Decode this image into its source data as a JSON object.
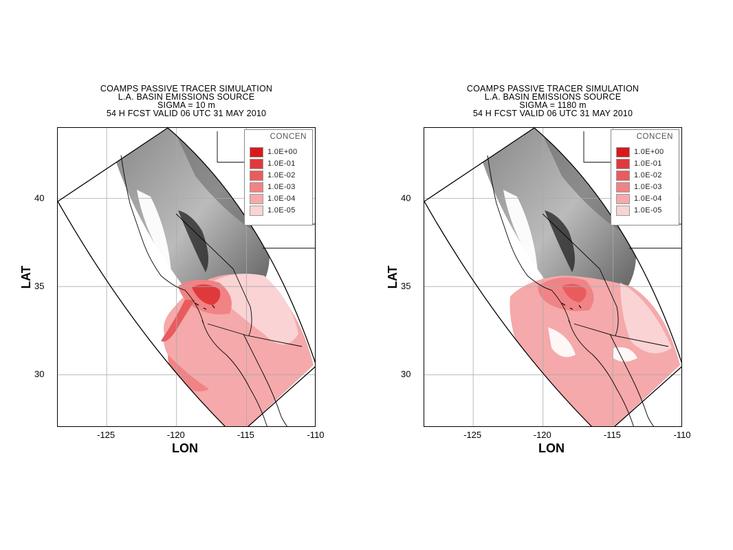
{
  "panels": [
    {
      "id": "left",
      "title_lines": [
        "COAMPS PASSIVE TRACER SIMULATION",
        "L.A. BASIN EMISSIONS SOURCE",
        "SIGMA = 10 m",
        "54 H FCST VALID 06 UTC 31 MAY 2010"
      ],
      "plume_extent": "surface"
    },
    {
      "id": "right",
      "title_lines": [
        "COAMPS PASSIVE TRACER SIMULATION",
        "L.A. BASIN EMISSIONS SOURCE",
        "SIGMA = 1180 m",
        "54 H FCST VALID 06 UTC 31 MAY 2010"
      ],
      "plume_extent": "elevated"
    }
  ],
  "axes": {
    "xlabel": "LON",
    "ylabel": "LAT",
    "x_ticks": [
      "-125",
      "-120",
      "-115",
      "-110"
    ],
    "y_ticks": [
      "40",
      "35",
      "30"
    ],
    "x_range": [
      -128.5,
      -110
    ],
    "y_range": [
      27,
      44
    ]
  },
  "legend": {
    "title": "CONCEN",
    "levels": [
      {
        "label": "1.0E+00",
        "color": "#d7191c"
      },
      {
        "label": "1.0E-01",
        "color": "#e0393c"
      },
      {
        "label": "1.0E-02",
        "color": "#e85c5e"
      },
      {
        "label": "1.0E-03",
        "color": "#f08385"
      },
      {
        "label": "1.0E-04",
        "color": "#f5a9aa"
      },
      {
        "label": "1.0E-05",
        "color": "#fad3d4"
      }
    ]
  }
}
